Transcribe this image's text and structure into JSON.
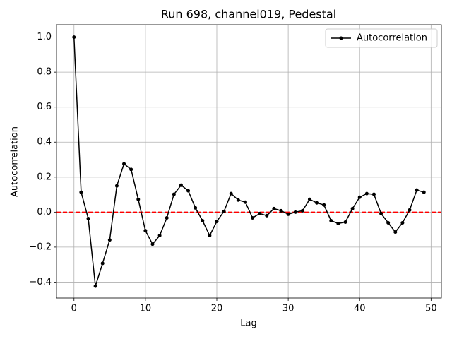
{
  "chart_data": {
    "type": "line",
    "title": "Run 698, channel019, Pedestal",
    "xlabel": "Lag",
    "ylabel": "Autocorrelation",
    "x": [
      0,
      1,
      2,
      3,
      4,
      5,
      6,
      7,
      8,
      9,
      10,
      11,
      12,
      13,
      14,
      15,
      16,
      17,
      18,
      19,
      20,
      21,
      22,
      23,
      24,
      25,
      26,
      27,
      28,
      29,
      30,
      31,
      32,
      33,
      34,
      35,
      36,
      37,
      38,
      39,
      40,
      41,
      42,
      43,
      44,
      45,
      46,
      47,
      48,
      49
    ],
    "series": [
      {
        "name": "Autocorrelation",
        "color": "#000000",
        "values": [
          1.0,
          0.114,
          -0.037,
          -0.423,
          -0.293,
          -0.159,
          0.15,
          0.276,
          0.244,
          0.073,
          -0.106,
          -0.183,
          -0.134,
          -0.033,
          0.102,
          0.154,
          0.122,
          0.024,
          -0.049,
          -0.134,
          -0.053,
          0.004,
          0.106,
          0.069,
          0.057,
          -0.033,
          -0.008,
          -0.02,
          0.02,
          0.008,
          -0.012,
          0.0,
          0.008,
          0.073,
          0.053,
          0.041,
          -0.049,
          -0.065,
          -0.057,
          0.02,
          0.085,
          0.106,
          0.102,
          -0.008,
          -0.061,
          -0.114,
          -0.061,
          0.012,
          0.126,
          0.114
        ]
      }
    ],
    "reference_line": {
      "value": 0,
      "color": "#ff0000"
    },
    "xlim": [
      -2.45,
      51.45
    ],
    "ylim": [
      -0.491,
      1.071
    ],
    "xticks": [
      0,
      10,
      20,
      30,
      40,
      50
    ],
    "yticks": [
      {
        "value": -0.4,
        "label": "−0.4"
      },
      {
        "value": -0.2,
        "label": "−0.2"
      },
      {
        "value": 0,
        "label": "0.0"
      },
      {
        "value": 0.2,
        "label": "0.2"
      },
      {
        "value": 0.4,
        "label": "0.4"
      },
      {
        "value": 0.6,
        "label": "0.6"
      },
      {
        "value": 0.8,
        "label": "0.8"
      },
      {
        "value": 1.0,
        "label": "1.0"
      }
    ],
    "grid": true,
    "legend": "upper right"
  }
}
